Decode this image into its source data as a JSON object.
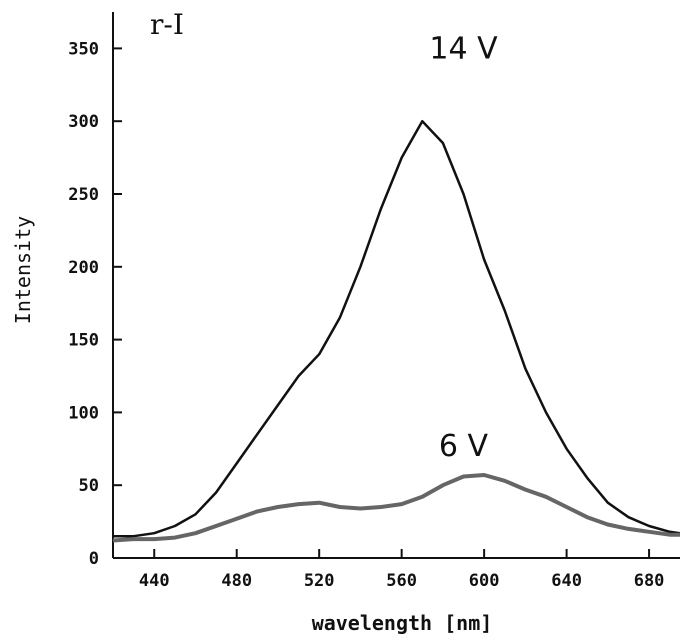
{
  "chart_data": {
    "type": "line",
    "panel_label": "r-I",
    "xlabel": "wavelength [nm]",
    "ylabel": "Intensity",
    "xlim": [
      420,
      695
    ],
    "ylim": [
      0,
      375
    ],
    "xticks": [
      440,
      480,
      520,
      560,
      600,
      640,
      680
    ],
    "yticks": [
      0,
      50,
      100,
      150,
      200,
      250,
      300,
      350
    ],
    "grid": false,
    "legend": "none",
    "x": [
      420,
      430,
      440,
      450,
      460,
      470,
      480,
      490,
      500,
      510,
      520,
      530,
      540,
      550,
      560,
      570,
      580,
      590,
      600,
      610,
      620,
      630,
      640,
      650,
      660,
      670,
      680,
      690,
      695
    ],
    "series": [
      {
        "name": "14 V",
        "color": "#111111",
        "values": [
          15,
          15,
          17,
          22,
          30,
          45,
          65,
          85,
          105,
          125,
          140,
          165,
          200,
          240,
          275,
          300,
          285,
          250,
          205,
          170,
          130,
          100,
          75,
          55,
          38,
          28,
          22,
          18,
          17
        ]
      },
      {
        "name": "6 V",
        "color": "#666666",
        "values": [
          12,
          13,
          13,
          14,
          17,
          22,
          27,
          32,
          35,
          37,
          38,
          35,
          34,
          35,
          37,
          42,
          50,
          56,
          57,
          53,
          47,
          42,
          35,
          28,
          23,
          20,
          18,
          16,
          16
        ]
      }
    ],
    "annotations": [
      {
        "text": "14 V",
        "x": 590,
        "y": 343
      },
      {
        "text": "6 V",
        "x": 590,
        "y": 70
      }
    ]
  }
}
